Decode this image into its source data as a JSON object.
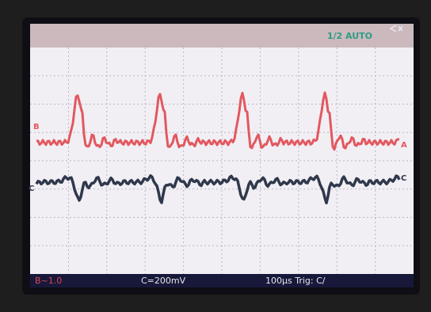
{
  "header": {
    "mode": "1/2 AUTO"
  },
  "trace_labels": {
    "b_left": "B",
    "a_right": "A",
    "c_left": "C",
    "c_right": "C"
  },
  "footer": {
    "ch_b": "B~1.0",
    "ch_c": "C=200mV",
    "timebase": "100µs Trig: C/"
  }
}
